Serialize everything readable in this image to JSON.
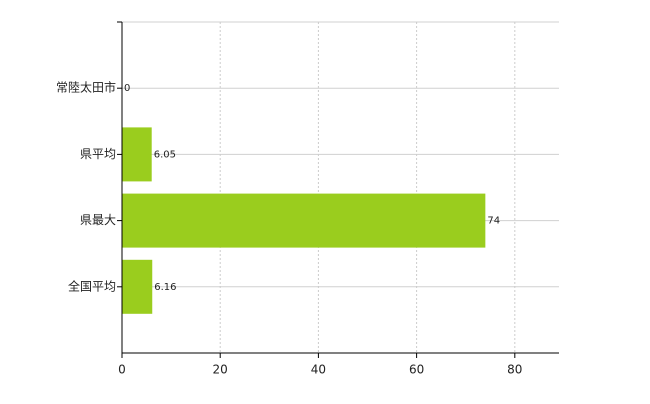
{
  "chart_data": {
    "type": "bar",
    "orientation": "horizontal",
    "categories": [
      "常陸太田市",
      "県平均",
      "県最大",
      "全国平均"
    ],
    "values": [
      0,
      6.05,
      74,
      6.16
    ],
    "color": "#9acd1e",
    "xlim": [
      0,
      89
    ],
    "xticks": [
      0,
      20,
      40,
      60,
      80
    ],
    "grid": true
  }
}
